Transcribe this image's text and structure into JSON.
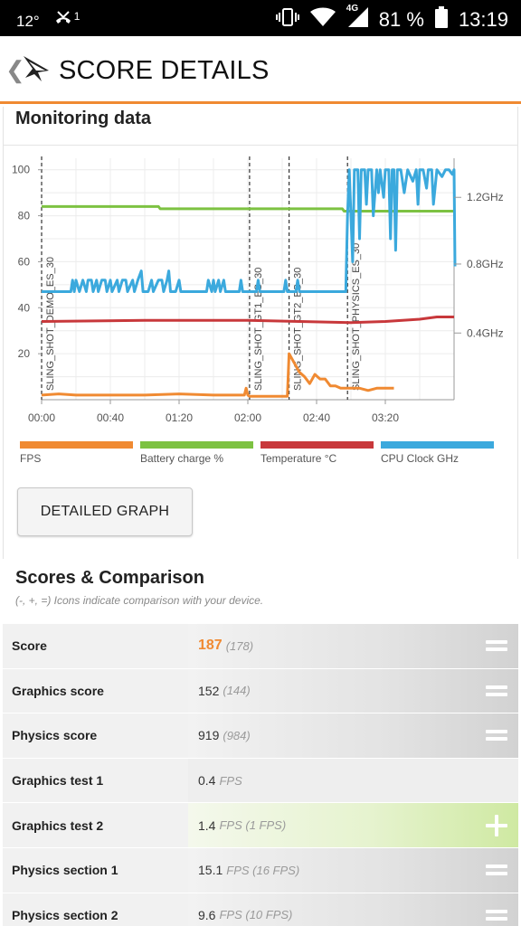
{
  "status": {
    "temp": "12°",
    "missed_call_count": "1",
    "network": "4G",
    "battery": "81 %",
    "time": "13:19"
  },
  "appbar": {
    "title": "SCORE DETAILS"
  },
  "monitoring": {
    "title": "Monitoring data",
    "chart_data": {
      "type": "line",
      "x_ticks": [
        "00:00",
        "00:40",
        "01:20",
        "02:00",
        "02:40",
        "03:20"
      ],
      "y_left_ticks": [
        "100",
        "80",
        "60",
        "40",
        "20"
      ],
      "y_left_range": [
        0,
        100
      ],
      "y_right_ticks": [
        "1.2GHz",
        "0.8GHz",
        "0.4GHz"
      ],
      "test_markers": [
        {
          "label": "SLING_SHOT_DEMO_ES_30",
          "time_s": 0
        },
        {
          "label": "SLING_SHOT_GT1_ES_30",
          "time_s": 121
        },
        {
          "label": "SLING_SHOT_GT2_ES_30",
          "time_s": 144
        },
        {
          "label": "SLING_SHOT_PHYSICS_ES_30",
          "time_s": 178
        }
      ],
      "series": [
        {
          "name": "FPS",
          "color": "#f08a32",
          "points": [
            [
              0,
              2
            ],
            [
              10,
              2.5
            ],
            [
              20,
              2
            ],
            [
              40,
              2
            ],
            [
              60,
              2
            ],
            [
              80,
              2.5
            ],
            [
              100,
              2
            ],
            [
              118,
              2
            ],
            [
              119,
              5
            ],
            [
              120,
              2
            ],
            [
              121,
              1.5
            ],
            [
              135,
              1.5
            ],
            [
              143,
              1.5
            ],
            [
              144,
              20
            ],
            [
              147,
              16
            ],
            [
              150,
              12
            ],
            [
              153,
              10
            ],
            [
              156,
              7
            ],
            [
              159,
              11
            ],
            [
              162,
              9
            ],
            [
              165,
              9
            ],
            [
              168,
              6
            ],
            [
              171,
              6
            ],
            [
              174,
              5
            ],
            [
              180,
              5
            ],
            [
              185,
              5
            ],
            [
              190,
              4
            ],
            [
              195,
              5
            ],
            [
              205,
              5
            ]
          ]
        },
        {
          "name": "Battery charge %",
          "color": "#7dc242",
          "points": [
            [
              0,
              84
            ],
            [
              68,
              84
            ],
            [
              69,
              83
            ],
            [
              175,
              83
            ],
            [
              176,
              82
            ],
            [
              240,
              82
            ]
          ]
        },
        {
          "name": "Temperature °C",
          "color": "#c8383b",
          "points": [
            [
              0,
              34
            ],
            [
              60,
              34.5
            ],
            [
              120,
              34.5
            ],
            [
              150,
              34
            ],
            [
              180,
              33.5
            ],
            [
              200,
              34
            ],
            [
              220,
              35
            ],
            [
              230,
              36
            ],
            [
              240,
              36
            ]
          ]
        },
        {
          "name": "CPU Clock GHz",
          "color": "#3ba9dd",
          "points": [
            [
              0,
              47
            ],
            [
              17,
              47
            ],
            [
              18,
              52
            ],
            [
              19,
              47
            ],
            [
              20,
              52
            ],
            [
              22,
              47
            ],
            [
              24,
              52
            ],
            [
              26,
              47
            ],
            [
              27,
              52
            ],
            [
              29,
              52
            ],
            [
              30,
              47
            ],
            [
              32,
              52
            ],
            [
              33,
              47
            ],
            [
              35,
              52
            ],
            [
              37,
              52
            ],
            [
              38,
              47
            ],
            [
              40,
              52
            ],
            [
              41,
              47
            ],
            [
              44,
              52
            ],
            [
              45,
              47
            ],
            [
              47,
              52
            ],
            [
              49,
              52
            ],
            [
              50,
              47
            ],
            [
              53,
              52
            ],
            [
              54,
              47
            ],
            [
              56,
              52
            ],
            [
              58,
              56
            ],
            [
              59,
              47
            ],
            [
              62,
              47
            ],
            [
              64,
              52
            ],
            [
              65,
              47
            ],
            [
              68,
              52
            ],
            [
              70,
              52
            ],
            [
              71,
              47
            ],
            [
              73,
              52
            ],
            [
              74,
              56
            ],
            [
              75,
              47
            ],
            [
              78,
              47
            ],
            [
              80,
              52
            ],
            [
              81,
              47
            ],
            [
              96,
              47
            ],
            [
              97,
              52
            ],
            [
              99,
              47
            ],
            [
              100,
              52
            ],
            [
              101,
              47
            ],
            [
              103,
              52
            ],
            [
              104,
              47
            ],
            [
              106,
              52
            ],
            [
              107,
              47
            ],
            [
              115,
              47
            ],
            [
              116,
              52
            ],
            [
              117,
              47
            ],
            [
              125,
              47
            ],
            [
              126,
              52
            ],
            [
              127,
              47
            ],
            [
              141,
              47
            ],
            [
              142,
              52
            ],
            [
              143,
              47
            ],
            [
              148,
              47
            ],
            [
              149,
              52
            ],
            [
              150,
              47
            ],
            [
              177,
              47
            ],
            [
              178,
              80
            ],
            [
              179,
              100
            ],
            [
              181,
              60
            ],
            [
              182,
              100
            ],
            [
              184,
              100
            ],
            [
              185,
              70
            ],
            [
              186,
              100
            ],
            [
              188,
              100
            ],
            [
              189,
              85
            ],
            [
              190,
              100
            ],
            [
              192,
              100
            ],
            [
              193,
              80
            ],
            [
              195,
              100
            ],
            [
              196,
              90
            ],
            [
              197,
              100
            ],
            [
              199,
              88
            ],
            [
              200,
              100
            ],
            [
              202,
              100
            ],
            [
              203,
              70
            ],
            [
              204,
              100
            ],
            [
              205,
              100
            ],
            [
              206,
              65
            ],
            [
              207,
              100
            ],
            [
              209,
              100
            ],
            [
              211,
              90
            ],
            [
              213,
              100
            ],
            [
              216,
              95
            ],
            [
              218,
              100
            ],
            [
              219,
              85
            ],
            [
              220,
              100
            ],
            [
              222,
              100
            ],
            [
              224,
              92
            ],
            [
              225,
              100
            ],
            [
              227,
              100
            ],
            [
              228,
              85
            ],
            [
              230,
              100
            ],
            [
              233,
              97
            ],
            [
              235,
              100
            ],
            [
              237,
              100
            ],
            [
              239,
              98
            ],
            [
              240,
              100
            ],
            [
              240.5,
              58
            ]
          ]
        }
      ]
    },
    "legend": [
      {
        "label": "FPS",
        "color": "#f08a32"
      },
      {
        "label": "Battery charge %",
        "color": "#7dc242"
      },
      {
        "label": "Temperature °C",
        "color": "#c8383b"
      },
      {
        "label": "CPU Clock GHz",
        "color": "#3ba9dd"
      }
    ],
    "button": "DETAILED GRAPH"
  },
  "scores": {
    "title": "Scores & Comparison",
    "subtitle": "(-, +, =) Icons indicate comparison with your device.",
    "rows": [
      {
        "label": "Score",
        "value": "187",
        "compare": "(178)",
        "unit": "",
        "indicator": "equals"
      },
      {
        "label": "Graphics score",
        "value": "152",
        "compare": "(144)",
        "unit": "",
        "indicator": "equals"
      },
      {
        "label": "Physics score",
        "value": "919",
        "compare": "(984)",
        "unit": "",
        "indicator": "equals"
      },
      {
        "label": "Graphics test 1",
        "value": "0.4",
        "compare": "",
        "unit": "FPS",
        "indicator": "none"
      },
      {
        "label": "Graphics test 2",
        "value": "1.4",
        "compare": "",
        "unit": "FPS (1 FPS)",
        "indicator": "plus"
      },
      {
        "label": "Physics section 1",
        "value": "15.1",
        "compare": "",
        "unit": "FPS (16 FPS)",
        "indicator": "equals"
      },
      {
        "label": "Physics section 2",
        "value": "9.6",
        "compare": "",
        "unit": "FPS (10 FPS)",
        "indicator": "equals"
      }
    ]
  }
}
